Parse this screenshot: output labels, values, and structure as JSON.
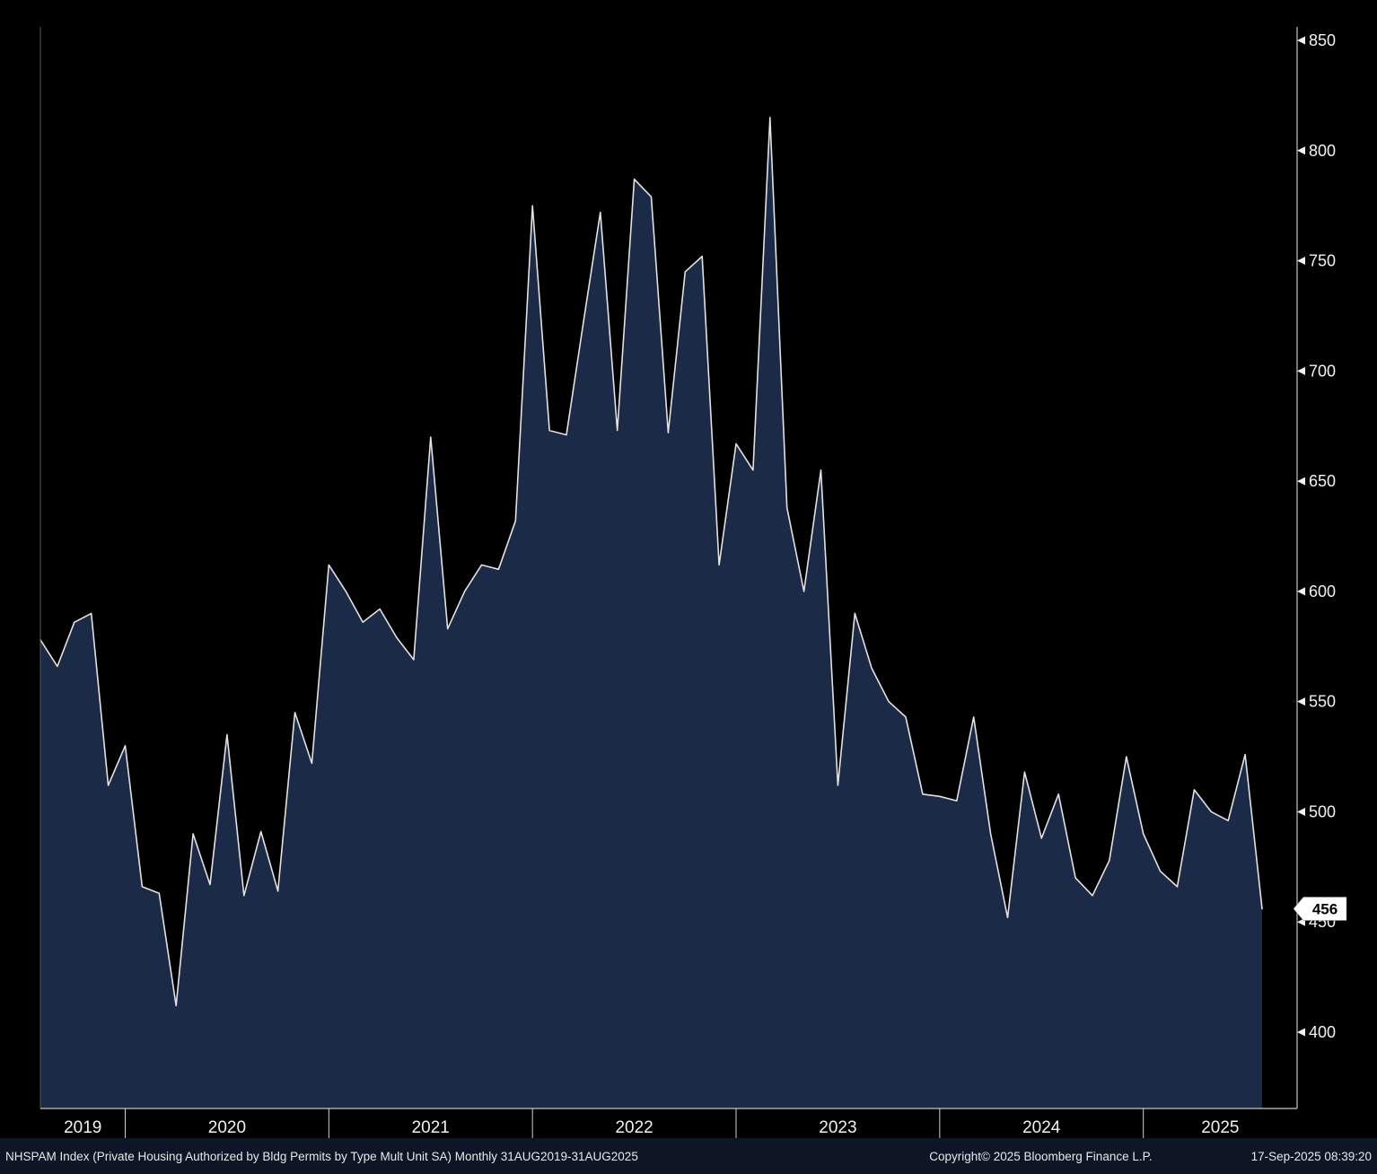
{
  "window": {
    "background": "#000000"
  },
  "chart_data": {
    "type": "area",
    "security": "NHSPAM Index",
    "description": "Private Housing Authorized by Bldg Permits by Type Mult Unit SA",
    "periodicity": "Monthly",
    "date_range": "31AUG2019-31AUG2025",
    "x": [
      "2019-08",
      "2019-09",
      "2019-10",
      "2019-11",
      "2019-12",
      "2020-01",
      "2020-02",
      "2020-03",
      "2020-04",
      "2020-05",
      "2020-06",
      "2020-07",
      "2020-08",
      "2020-09",
      "2020-10",
      "2020-11",
      "2020-12",
      "2021-01",
      "2021-02",
      "2021-03",
      "2021-04",
      "2021-05",
      "2021-06",
      "2021-07",
      "2021-08",
      "2021-09",
      "2021-10",
      "2021-11",
      "2021-12",
      "2022-01",
      "2022-02",
      "2022-03",
      "2022-04",
      "2022-05",
      "2022-06",
      "2022-07",
      "2022-08",
      "2022-09",
      "2022-10",
      "2022-11",
      "2022-12",
      "2023-01",
      "2023-02",
      "2023-03",
      "2023-04",
      "2023-05",
      "2023-06",
      "2023-07",
      "2023-08",
      "2023-09",
      "2023-10",
      "2023-11",
      "2023-12",
      "2024-01",
      "2024-02",
      "2024-03",
      "2024-04",
      "2024-05",
      "2024-06",
      "2024-07",
      "2024-08",
      "2024-09",
      "2024-10",
      "2024-11",
      "2024-12",
      "2025-01",
      "2025-02",
      "2025-03",
      "2025-04",
      "2025-05",
      "2025-06",
      "2025-07",
      "2025-08"
    ],
    "values": [
      578,
      566,
      586,
      590,
      512,
      530,
      466,
      463,
      412,
      490,
      467,
      535,
      462,
      491,
      464,
      545,
      522,
      612,
      600,
      586,
      592,
      579,
      569,
      670,
      583,
      600,
      612,
      610,
      632,
      775,
      673,
      671,
      722,
      772,
      673,
      787,
      779,
      672,
      745,
      752,
      612,
      667,
      655,
      815,
      638,
      600,
      655,
      512,
      590,
      565,
      550,
      543,
      508,
      507,
      505,
      543,
      490,
      452,
      518,
      488,
      508,
      470,
      462,
      478,
      525,
      490,
      473,
      466,
      510,
      500,
      496,
      526,
      456
    ],
    "ylim": [
      400,
      850
    ],
    "y_ticks": [
      400,
      450,
      500,
      550,
      600,
      650,
      700,
      750,
      800,
      850
    ],
    "x_year_labels": [
      "2019",
      "2020",
      "2021",
      "2022",
      "2023",
      "2024",
      "2025"
    ],
    "jan_indices": [
      5,
      17,
      29,
      41,
      53,
      65
    ],
    "last_value": 456,
    "grid": false,
    "legend": "none",
    "colors": {
      "line": "#e2e2e2",
      "fill": "#1b2b47",
      "axis": "#a8a8a8",
      "left_border": "#5a5a5a",
      "tick_label": "#f2f2f2",
      "year_tick": "#d0d0d0",
      "tag_bg": "#ffffff",
      "tag_text": "#000000"
    }
  },
  "last_value_tag": {
    "text": "456"
  },
  "footer": {
    "left": "NHSPAM Index (Private Housing Authorized by Bldg Permits by Type Mult Unit SA)  Monthly 31AUG2019-31AUG2025",
    "copyright": "Copyright© 2025 Bloomberg Finance L.P.",
    "timestamp": "17-Sep-2025 08:39:20"
  }
}
